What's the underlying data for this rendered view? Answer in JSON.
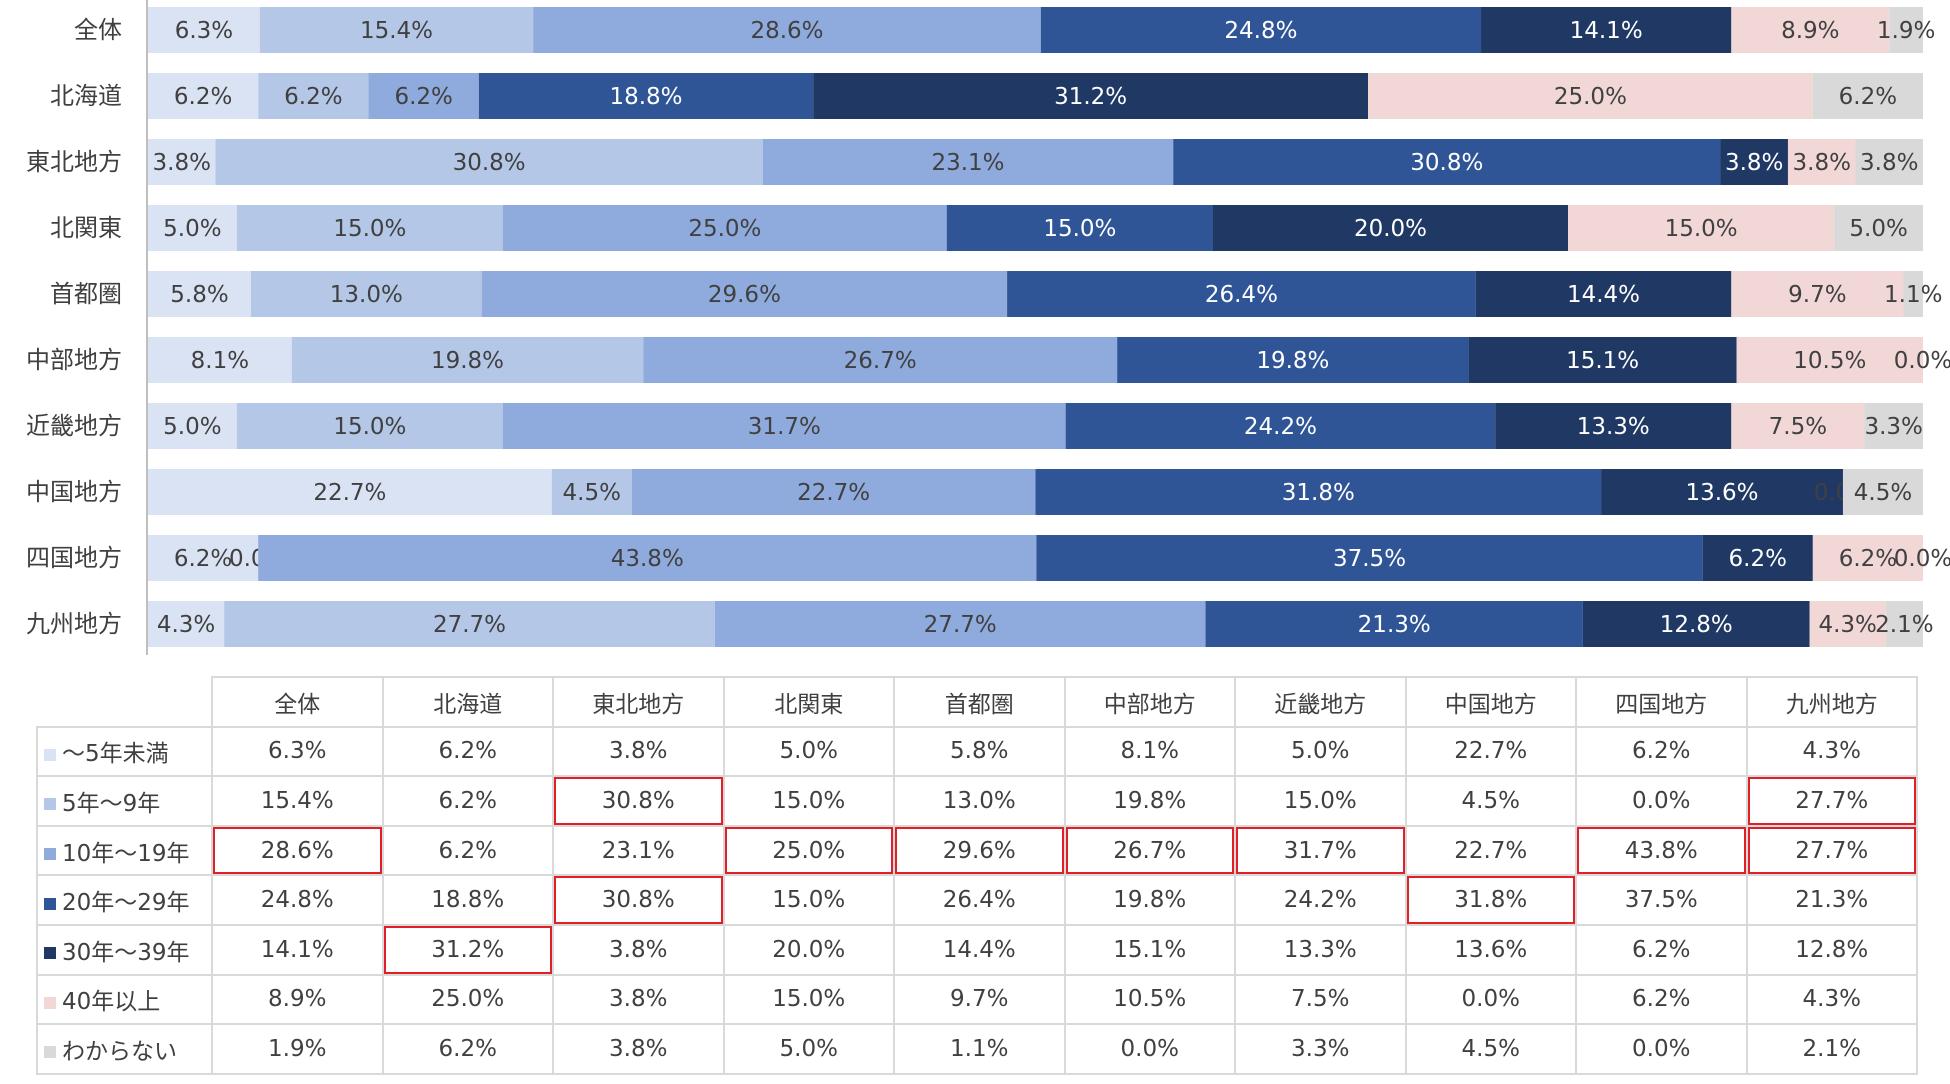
{
  "chart_data": {
    "type": "bar",
    "orientation": "horizontal",
    "stacked": "100%",
    "categories": [
      "全体",
      "北海道",
      "東北地方",
      "北関東",
      "首都圏",
      "中部地方",
      "近畿地方",
      "中国地方",
      "四国地方",
      "九州地方"
    ],
    "series": [
      {
        "name": "～5年未満",
        "color": "#dae3f3",
        "values": [
          6.3,
          6.2,
          3.8,
          5.0,
          5.8,
          8.1,
          5.0,
          22.7,
          6.2,
          4.3
        ]
      },
      {
        "name": "5年～9年",
        "color": "#b4c7e7",
        "values": [
          15.4,
          6.2,
          30.8,
          15.0,
          13.0,
          19.8,
          15.0,
          4.5,
          0.0,
          27.7
        ]
      },
      {
        "name": "10年～19年",
        "color": "#8faadc",
        "values": [
          28.6,
          6.2,
          23.1,
          25.0,
          29.6,
          26.7,
          31.7,
          22.7,
          43.8,
          27.7
        ]
      },
      {
        "name": "20年～29年",
        "color": "#2f5597",
        "values": [
          24.8,
          18.8,
          30.8,
          15.0,
          26.4,
          19.8,
          24.2,
          31.8,
          37.5,
          21.3
        ]
      },
      {
        "name": "30年～39年",
        "color": "#203864",
        "values": [
          14.1,
          31.2,
          3.8,
          20.0,
          14.4,
          15.1,
          13.3,
          13.6,
          6.2,
          12.8
        ]
      },
      {
        "name": "40年以上",
        "color": "#f2d7d7",
        "values": [
          8.9,
          25.0,
          3.8,
          15.0,
          9.7,
          10.5,
          7.5,
          0.0,
          6.2,
          4.3
        ]
      },
      {
        "name": "わからない",
        "color": "#d9d9d9",
        "values": [
          1.9,
          6.2,
          3.8,
          5.0,
          1.1,
          0.0,
          3.3,
          4.5,
          0.0,
          2.1
        ]
      }
    ],
    "xlim": [
      0,
      100
    ],
    "label_format": "0.1%",
    "table": {
      "headers": [
        "全体",
        "北海道",
        "東北地方",
        "北関東",
        "首都圏",
        "中部地方",
        "近畿地方",
        "中国地方",
        "四国地方",
        "九州地方"
      ],
      "rows": [
        [
          "～5年未満",
          "6.3%",
          "6.2%",
          "3.8%",
          "5.0%",
          "5.8%",
          "8.1%",
          "5.0%",
          "22.7%",
          "6.2%",
          "4.3%"
        ],
        [
          "5年～9年",
          "15.4%",
          "6.2%",
          "30.8%",
          "15.0%",
          "13.0%",
          "19.8%",
          "15.0%",
          "4.5%",
          "0.0%",
          "27.7%"
        ],
        [
          "10年～19年",
          "28.6%",
          "6.2%",
          "23.1%",
          "25.0%",
          "29.6%",
          "26.7%",
          "31.7%",
          "22.7%",
          "43.8%",
          "27.7%"
        ],
        [
          "20年～29年",
          "24.8%",
          "18.8%",
          "30.8%",
          "15.0%",
          "26.4%",
          "19.8%",
          "24.2%",
          "31.8%",
          "37.5%",
          "21.3%"
        ],
        [
          "30年～39年",
          "14.1%",
          "31.2%",
          "3.8%",
          "20.0%",
          "14.4%",
          "15.1%",
          "13.3%",
          "13.6%",
          "6.2%",
          "12.8%"
        ],
        [
          "40年以上",
          "8.9%",
          "25.0%",
          "3.8%",
          "15.0%",
          "9.7%",
          "10.5%",
          "7.5%",
          "0.0%",
          "6.2%",
          "4.3%"
        ],
        [
          "わからない",
          "1.9%",
          "6.2%",
          "3.8%",
          "5.0%",
          "1.1%",
          "0.0%",
          "3.3%",
          "4.5%",
          "0.0%",
          "2.1%"
        ]
      ],
      "highlighted_cells": [
        [
          2,
          0
        ],
        [
          4,
          1
        ],
        [
          1,
          2
        ],
        [
          3,
          2
        ],
        [
          2,
          3
        ],
        [
          2,
          4
        ],
        [
          2,
          5
        ],
        [
          2,
          6
        ],
        [
          3,
          7
        ],
        [
          2,
          8
        ],
        [
          1,
          9
        ],
        [
          2,
          9
        ]
      ],
      "highlight_color": "#e01f26"
    }
  }
}
